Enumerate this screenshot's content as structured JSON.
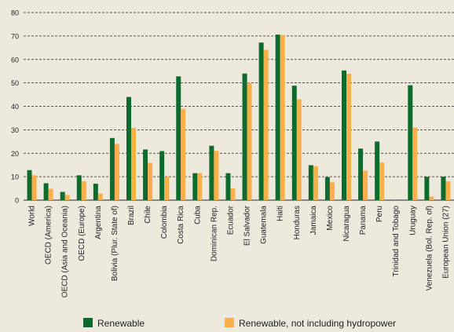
{
  "chart_data": {
    "type": "bar",
    "categories": [
      "World",
      "OECD (America)",
      "OECD (Asia and Oceania)",
      "OECD (Europe)",
      "Argentina",
      "Bolivia (Plur. State of)",
      "Brazil",
      "Chile",
      "Colombia",
      "Costa Rica",
      "Cuba",
      "Dominican Rep.",
      "Ecuador",
      "El Salvador",
      "Guatemala",
      "Haiti",
      "Honduras",
      "Jamaica",
      "Mexico",
      "Nicaragua",
      "Panama",
      "Peru",
      "Trinidad and Tobago",
      "Uruguay",
      "Venezuela (Bol. Rep. of)",
      "European Union (27)"
    ],
    "series": [
      {
        "name": "Renewable",
        "color": "#0e6b2e",
        "values": [
          12.8,
          7.2,
          3.5,
          10.6,
          7.0,
          26.5,
          44.0,
          21.6,
          20.9,
          52.8,
          11.5,
          23.2,
          11.5,
          54.0,
          67.2,
          70.6,
          48.8,
          14.9,
          9.8,
          55.3,
          22.0,
          25.0,
          0.1,
          49.0,
          9.9,
          10.0
        ]
      },
      {
        "name": "Renewable, not including hydropower",
        "color": "#f7b04a",
        "values": [
          10.6,
          4.8,
          2.2,
          8.1,
          2.8,
          24.0,
          30.8,
          15.9,
          10.0,
          39.0,
          11.5,
          21.0,
          5.0,
          50.0,
          64.1,
          70.4,
          43.0,
          14.5,
          7.6,
          53.9,
          12.6,
          16.0,
          0.0,
          31.0,
          1.5,
          8.0
        ]
      }
    ],
    "ylim": [
      0,
      80
    ],
    "yticks": [
      0,
      10,
      20,
      30,
      40,
      50,
      60,
      70,
      80
    ],
    "grid": "dashed-horizontal",
    "legend": "bottom"
  }
}
